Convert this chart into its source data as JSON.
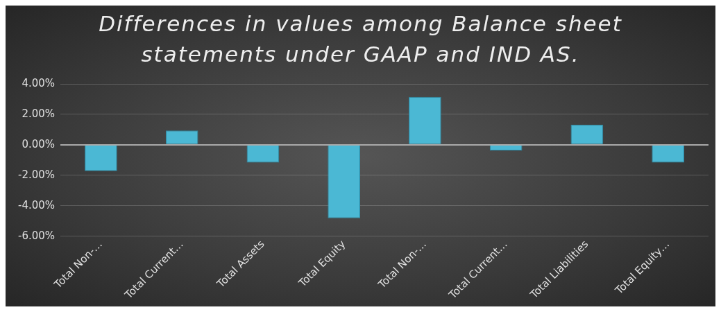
{
  "chart_data": {
    "type": "bar",
    "title": "Differences in values among  Balance sheet statements under GAAP and IND AS.",
    "categories": [
      "Total Non-…",
      "Total Current…",
      "Total Assets",
      "Total Equity",
      "Total Non-…",
      "Total Current…",
      "Total Liabilities",
      "Total Equity…"
    ],
    "values": [
      -1.72,
      0.94,
      -1.17,
      -4.82,
      3.15,
      -0.37,
      1.33,
      -1.17
    ],
    "color": "#4bb8d4",
    "ylim": [
      -6,
      4
    ],
    "yticks": [
      {
        "value": -6,
        "label": "-6.00%"
      },
      {
        "value": -4,
        "label": "-4.00%"
      },
      {
        "value": -2,
        "label": "-2.00%"
      },
      {
        "value": 0,
        "label": "0.00%"
      },
      {
        "value": 2,
        "label": "2.00%"
      },
      {
        "value": 4,
        "label": "4.00%"
      }
    ],
    "grid": "y",
    "legend": false
  }
}
